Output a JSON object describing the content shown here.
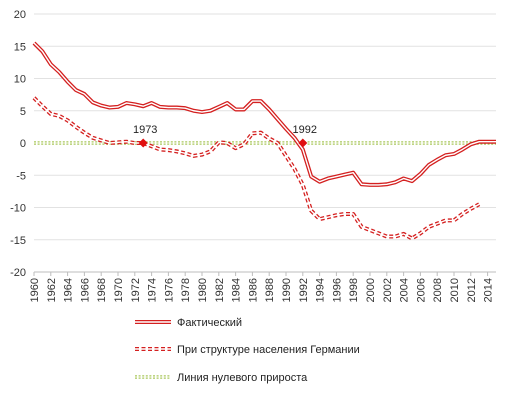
{
  "chart_data": {
    "type": "line",
    "title": "",
    "xlabel": "",
    "ylabel": "",
    "xlim": [
      1960,
      2015
    ],
    "ylim": [
      -20,
      20
    ],
    "y_ticks": [
      20,
      15,
      10,
      5,
      0,
      -5,
      -10,
      -15,
      -20
    ],
    "x_ticks": [
      1960,
      1962,
      1964,
      1966,
      1968,
      1970,
      1972,
      1974,
      1976,
      1978,
      1980,
      1982,
      1984,
      1986,
      1988,
      1990,
      1992,
      1994,
      1996,
      1998,
      2000,
      2002,
      2004,
      2006,
      2008,
      2010,
      2012,
      2014
    ],
    "x_tick_labels": [
      "1960",
      "1962",
      "1964",
      "1966",
      "1968",
      "1970",
      "1972",
      "1974",
      "1976",
      "1978",
      "1980",
      "1982",
      "1984",
      "1986",
      "1988",
      "1990",
      "1992",
      "1994",
      "1996",
      "1998",
      "2000",
      "2002",
      "2004",
      "2006",
      "2008",
      "2010",
      "2012",
      "2014"
    ],
    "grid": "horizontal",
    "legend_position": "bottom",
    "series": [
      {
        "name": "Фактический",
        "style": "double-solid",
        "color": "#d42020",
        "x": [
          1960,
          1961,
          1962,
          1963,
          1964,
          1965,
          1966,
          1967,
          1968,
          1969,
          1970,
          1971,
          1972,
          1973,
          1974,
          1975,
          1976,
          1977,
          1978,
          1979,
          1980,
          1981,
          1982,
          1983,
          1984,
          1985,
          1986,
          1987,
          1988,
          1989,
          1990,
          1991,
          1992,
          1993,
          1994,
          1995,
          1996,
          1997,
          1998,
          1999,
          2000,
          2001,
          2002,
          2003,
          2004,
          2005,
          2006,
          2007,
          2008,
          2009,
          2010,
          2011,
          2012,
          2013,
          2014,
          2015
        ],
        "values": [
          15.5,
          14.2,
          12.2,
          11.0,
          9.5,
          8.2,
          7.6,
          6.3,
          5.8,
          5.5,
          5.6,
          6.2,
          6.0,
          5.7,
          6.2,
          5.6,
          5.5,
          5.5,
          5.4,
          5.0,
          4.8,
          5.0,
          5.6,
          6.2,
          5.2,
          5.2,
          6.5,
          6.5,
          5.2,
          3.7,
          2.2,
          0.8,
          -1.0,
          -5.2,
          -6.0,
          -5.5,
          -5.2,
          -4.9,
          -4.6,
          -6.4,
          -6.5,
          -6.5,
          -6.4,
          -6.1,
          -5.5,
          -5.9,
          -4.8,
          -3.4,
          -2.6,
          -1.9,
          -1.7,
          -1.0,
          -0.2,
          0.2,
          0.2,
          0.2
        ]
      },
      {
        "name": "При структуре населения Германии",
        "style": "double-dashed",
        "color": "#d42020",
        "x": [
          1960,
          1961,
          1962,
          1963,
          1964,
          1965,
          1966,
          1967,
          1968,
          1969,
          1970,
          1971,
          1972,
          1973,
          1974,
          1975,
          1976,
          1977,
          1978,
          1979,
          1980,
          1981,
          1982,
          1983,
          1984,
          1985,
          1986,
          1987,
          1988,
          1989,
          1990,
          1991,
          1992,
          1993,
          1994,
          1995,
          1996,
          1997,
          1998,
          1999,
          2000,
          2001,
          2002,
          2003,
          2004,
          2005,
          2006,
          2007,
          2008,
          2009,
          2010,
          2011,
          2012,
          2013
        ],
        "values": [
          7.0,
          5.7,
          4.5,
          4.2,
          3.5,
          2.5,
          1.6,
          0.8,
          0.4,
          0.0,
          0.1,
          0.2,
          0.0,
          0.0,
          -0.5,
          -1.0,
          -1.1,
          -1.3,
          -1.6,
          -2.0,
          -1.8,
          -1.3,
          0.1,
          0.0,
          -0.8,
          -0.2,
          1.5,
          1.6,
          0.7,
          0.0,
          -2.0,
          -4.0,
          -6.5,
          -10.5,
          -11.8,
          -11.5,
          -11.2,
          -11.0,
          -11.0,
          -13.0,
          -13.5,
          -14.0,
          -14.5,
          -14.5,
          -14.1,
          -14.8,
          -14.0,
          -13.0,
          -12.5,
          -12.0,
          -12.0,
          -11.0,
          -10.2,
          -9.5
        ]
      },
      {
        "name": "Линия нулевого прироста",
        "style": "double-dotted",
        "color": "#a8c75a",
        "x": [
          1960,
          2015
        ],
        "values": [
          0,
          0
        ]
      }
    ],
    "annotations": [
      {
        "label": "1973",
        "x": 1973,
        "y": 0,
        "marker": "diamond",
        "color": "#e01010"
      },
      {
        "label": "1992",
        "x": 1992,
        "y": 0,
        "marker": "diamond",
        "color": "#e01010"
      }
    ]
  }
}
